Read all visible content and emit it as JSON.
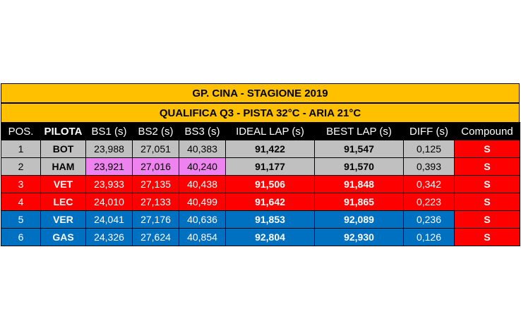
{
  "title": "GP. CINA - STAGIONE 2019",
  "subtitle": "QUALIFICA Q3  - PISTA 32°C - ARIA 21°C",
  "headers": [
    "POS.",
    "PILOTA",
    "BS1 (s)",
    "BS2 (s)",
    "BS3 (s)",
    "IDEAL LAP (s)",
    "BEST LAP (s)",
    "DIFF (s)",
    "Compound"
  ],
  "colors": {
    "banner": "#ffc000",
    "grey": "#c0c0c0",
    "red": "#ff0000",
    "blue": "#0070c0",
    "pink": "#ee82ee",
    "header": "#000000"
  },
  "rows": [
    {
      "pos": "1",
      "driver": "BOT",
      "bs1": "23,988",
      "bs2": "27,051",
      "bs3": "40,383",
      "ideal": "91,422",
      "best": "91,547",
      "diff": "0,125",
      "compound": "S",
      "team_color": "grey"
    },
    {
      "pos": "2",
      "driver": "HAM",
      "bs1": "23,921",
      "bs2": "27,016",
      "bs3": "40,240",
      "ideal": "91,177",
      "best": "91,570",
      "diff": "0,393",
      "compound": "S",
      "team_color": "grey",
      "best_sectors": [
        "bs1",
        "bs2",
        "bs3"
      ]
    },
    {
      "pos": "3",
      "driver": "VET",
      "bs1": "23,933",
      "bs2": "27,135",
      "bs3": "40,438",
      "ideal": "91,506",
      "best": "91,848",
      "diff": "0,342",
      "compound": "S",
      "team_color": "red"
    },
    {
      "pos": "4",
      "driver": "LEC",
      "bs1": "24,010",
      "bs2": "27,133",
      "bs3": "40,499",
      "ideal": "91,642",
      "best": "91,865",
      "diff": "0,223",
      "compound": "S",
      "team_color": "red"
    },
    {
      "pos": "5",
      "driver": "VER",
      "bs1": "24,041",
      "bs2": "27,176",
      "bs3": "40,636",
      "ideal": "91,853",
      "best": "92,089",
      "diff": "0,236",
      "compound": "S",
      "team_color": "blue"
    },
    {
      "pos": "6",
      "driver": "GAS",
      "bs1": "24,326",
      "bs2": "27,624",
      "bs3": "40,854",
      "ideal": "92,804",
      "best": "92,930",
      "diff": "0,126",
      "compound": "S",
      "team_color": "blue"
    }
  ]
}
